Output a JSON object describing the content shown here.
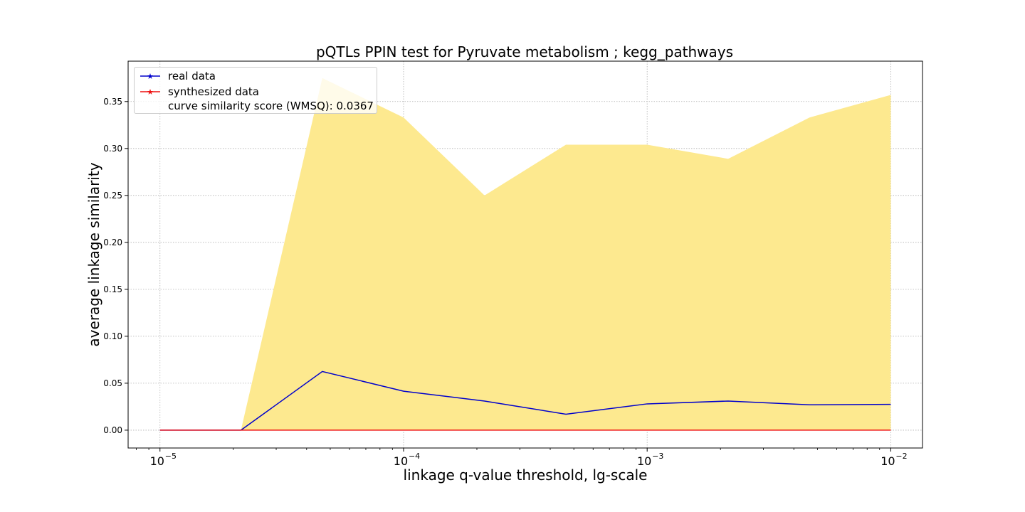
{
  "chart_data": {
    "type": "line",
    "title": "pQTLs PPIN test for Pyruvate metabolism ; kegg_pathways",
    "xlabel": "linkage q-value threshold, lg-scale",
    "ylabel": "average linkage similarity",
    "x_scale": "log",
    "x": [
      1e-05,
      2.15e-05,
      4.64e-05,
      0.0001,
      0.000215,
      0.000464,
      0.001,
      0.00215,
      0.00464,
      0.01
    ],
    "xlim": [
      7.4e-06,
      0.0135
    ],
    "ylim": [
      -0.019,
      0.393
    ],
    "x_ticks": [
      {
        "value": 1e-05,
        "base": "10",
        "exp": "−5"
      },
      {
        "value": 0.0001,
        "base": "10",
        "exp": "−4"
      },
      {
        "value": 0.001,
        "base": "10",
        "exp": "−3"
      },
      {
        "value": 0.01,
        "base": "10",
        "exp": "−2"
      }
    ],
    "y_ticks": [
      {
        "value": 0.0,
        "label": "0.00"
      },
      {
        "value": 0.05,
        "label": "0.05"
      },
      {
        "value": 0.1,
        "label": "0.10"
      },
      {
        "value": 0.15,
        "label": "0.15"
      },
      {
        "value": 0.2,
        "label": "0.20"
      },
      {
        "value": 0.25,
        "label": "0.25"
      },
      {
        "value": 0.3,
        "label": "0.30"
      },
      {
        "value": 0.35,
        "label": "0.35"
      }
    ],
    "grid": true,
    "legend_position": "top-left",
    "series": [
      {
        "name": "real data",
        "color": "#0000cc",
        "marker": "star",
        "values": [
          0.0,
          0.0,
          0.0625,
          0.0415,
          0.031,
          0.017,
          0.028,
          0.031,
          0.027,
          0.0275
        ]
      },
      {
        "name": "synthesized data",
        "color": "#ee1111",
        "marker": "star",
        "values": [
          0.0,
          0.0,
          0.0,
          0.0,
          0.0,
          0.0,
          0.0,
          0.0,
          0.0,
          0.0
        ]
      }
    ],
    "band": {
      "color": "#fde98f",
      "lower": [
        0.0,
        0.0,
        0.0,
        0.0,
        0.0,
        0.0,
        0.0,
        0.0,
        0.0,
        0.0
      ],
      "upper": [
        0.0,
        0.0,
        0.375,
        0.333,
        0.25,
        0.304,
        0.304,
        0.289,
        0.333,
        0.357
      ]
    },
    "annotation": "curve similarity score (WMSQ): 0.0367"
  }
}
